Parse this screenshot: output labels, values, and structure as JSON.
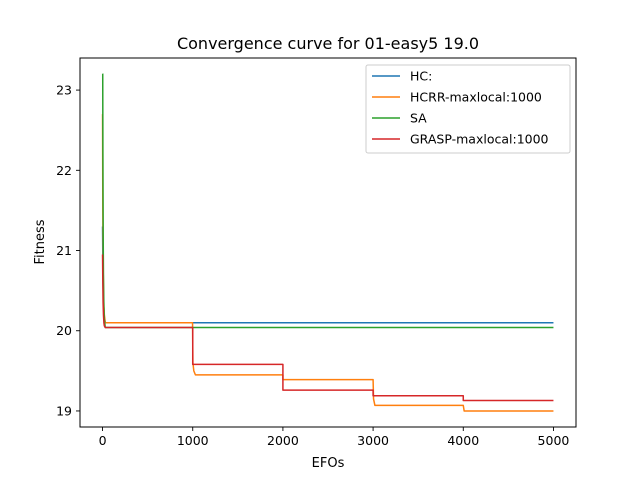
{
  "chart_data": {
    "type": "line",
    "title": "Convergence curve for 01-easy5 19.0",
    "xlabel": "EFOs",
    "ylabel": "Fitness",
    "xlim": [
      -250,
      5250
    ],
    "ylim": [
      18.8,
      23.4
    ],
    "xticks": [
      0,
      1000,
      2000,
      3000,
      4000,
      5000
    ],
    "yticks": [
      19,
      20,
      21,
      22,
      23
    ],
    "grid": false,
    "legend_position": "top-right",
    "series": [
      {
        "name": "HC:",
        "color": "#1f77b4",
        "x": [
          0,
          3,
          6,
          10,
          15,
          20,
          30,
          5000
        ],
        "y": [
          21.3,
          20.9,
          20.6,
          20.4,
          20.25,
          20.15,
          20.1,
          20.1
        ]
      },
      {
        "name": "HCRR-maxlocal:1000",
        "color": "#ff7f0e",
        "x": [
          0,
          3,
          6,
          10,
          15,
          20,
          30,
          998,
          1002,
          1012,
          1030,
          2000,
          2000,
          3000,
          3005,
          3020,
          4000,
          4010,
          5000
        ],
        "y": [
          22.7,
          21.5,
          20.9,
          20.5,
          20.3,
          20.2,
          20.1,
          20.1,
          19.6,
          19.5,
          19.45,
          19.45,
          19.39,
          19.39,
          19.15,
          19.07,
          19.07,
          19.0,
          19.0
        ]
      },
      {
        "name": "SA",
        "color": "#2ca02c",
        "x": [
          0,
          2,
          4,
          7,
          10,
          15,
          20,
          30,
          5000
        ],
        "y": [
          23.2,
          23.2,
          22.2,
          21.2,
          20.7,
          20.3,
          20.15,
          20.04,
          20.04
        ]
      },
      {
        "name": "GRASP-maxlocal:1000",
        "color": "#d62728",
        "x": [
          0,
          3,
          6,
          10,
          15,
          20,
          30,
          1000,
          1000,
          2000,
          2000,
          3000,
          3000,
          4000,
          4000,
          5000
        ],
        "y": [
          20.95,
          20.6,
          20.35,
          20.2,
          20.1,
          20.06,
          20.04,
          20.04,
          19.58,
          19.58,
          19.26,
          19.26,
          19.19,
          19.19,
          19.13,
          19.13
        ]
      }
    ]
  }
}
